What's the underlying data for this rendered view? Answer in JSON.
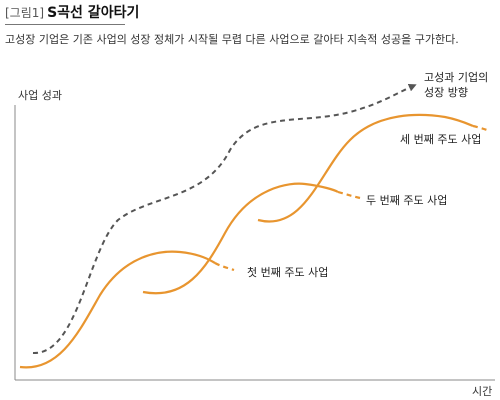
{
  "header": {
    "figure_label": "[그림1]",
    "title": "S곡선 갈아타기",
    "subtitle": "고성장 기업은 기존 사업의 성장 정체가 시작될 무렵 다른 사업으로 갈아타 지속적 성공을 구가한다."
  },
  "axes": {
    "y_label": "사업 성과",
    "x_label": "시간"
  },
  "labels": {
    "first_business": "첫 번째 주도 사업",
    "second_business": "두 번째 주도 사업",
    "third_business": "세 번째 주도 사업",
    "growth_direction_line1": "고성과 기업의",
    "growth_direction_line2": "성장 방향"
  },
  "colors": {
    "curve": "#e8952f",
    "trend": "#555555",
    "axis": "#888888"
  }
}
